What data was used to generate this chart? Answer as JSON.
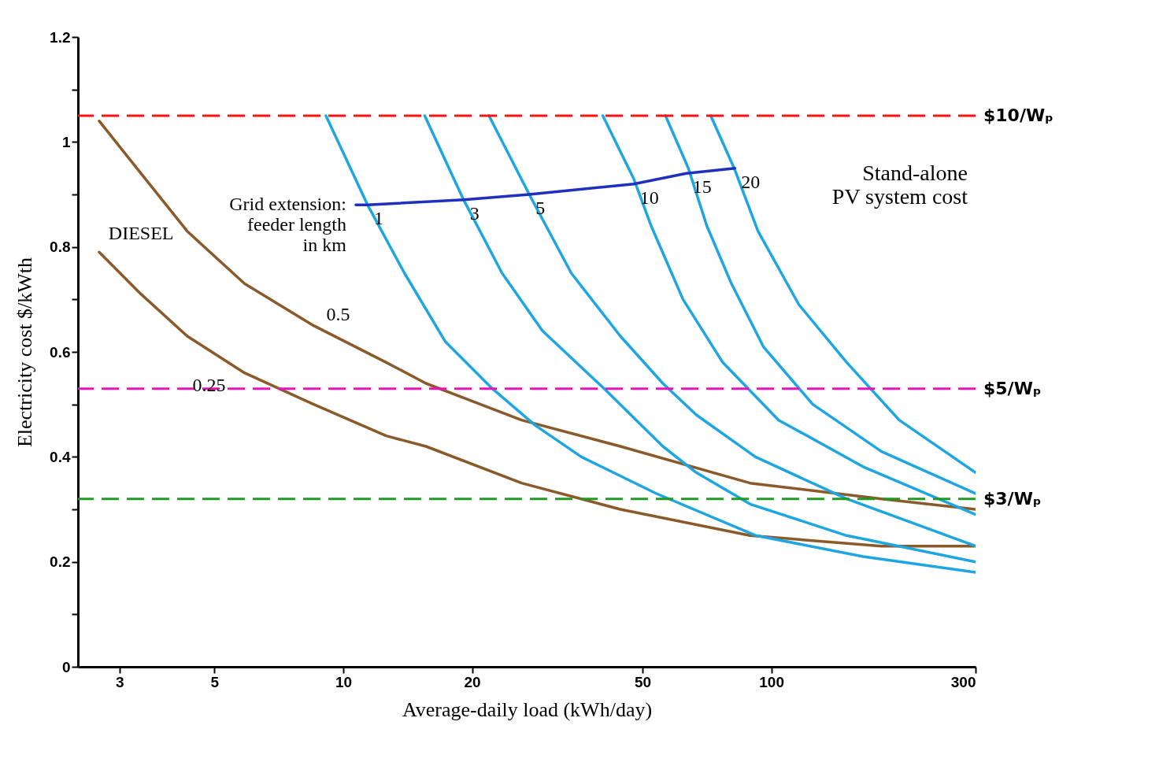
{
  "chart_data": {
    "type": "line",
    "xlabel": "Average-daily load (kWh/day)",
    "ylabel": "Electricity cost $/kWth",
    "log": "x",
    "xlim": [
      2.4,
      300
    ],
    "xticks": [
      3,
      5,
      10,
      20,
      50,
      100,
      300
    ],
    "ylim": [
      0,
      1.2
    ],
    "yticks": [
      0,
      {
        "value": 0.1,
        "label": null
      },
      0.2,
      {
        "value": 0.3,
        "label": null
      },
      0.4,
      {
        "value": 0.5,
        "label": null
      },
      0.6,
      {
        "value": 0.7,
        "label": null
      },
      0.8,
      {
        "value": 0.9,
        "label": null
      },
      1.0,
      {
        "value": 1.1,
        "label": null
      },
      1.2
    ],
    "series": [
      {
        "name": "DIESEL",
        "color": "#8b5a2b",
        "x": [
          2.69,
          3.37,
          4.32,
          5.88,
          8.53,
          12.6,
          15.6,
          26.1,
          44.4,
          89.2,
          181,
          300
        ],
        "values": [
          1.04,
          0.94,
          0.83,
          0.73,
          0.65,
          0.58,
          0.54,
          0.47,
          0.42,
          0.35,
          0.32,
          0.3
        ]
      },
      {
        "color": "#8b5a2b",
        "x": [
          2.69,
          3.37,
          4.32,
          5.88,
          8.53,
          12.6,
          15.6,
          26.1,
          44.4,
          89.2,
          181,
          300
        ],
        "values": [
          0.79,
          0.71,
          0.63,
          0.56,
          0.5,
          0.44,
          0.42,
          0.35,
          0.3,
          0.25,
          0.23,
          0.23
        ]
      },
      {
        "color": "#1ea6e0",
        "x": [
          9.11,
          11.4,
          13.9,
          17.3,
          22.3,
          28.1,
          36.0,
          53.9,
          92.1,
          164,
          300
        ],
        "values": [
          1.05,
          0.88,
          0.75,
          0.62,
          0.53,
          0.46,
          0.4,
          0.33,
          0.25,
          0.21,
          0.18
        ]
      },
      {
        "color": "#1ea6e0",
        "x": [
          15.5,
          19.1,
          23.5,
          29.2,
          40.7,
          55.8,
          66.8,
          89.2,
          150,
          300
        ],
        "values": [
          1.05,
          0.89,
          0.75,
          0.64,
          0.53,
          0.42,
          0.37,
          0.31,
          0.25,
          0.2
        ]
      },
      {
        "color": "#1ea6e0",
        "x": [
          21.9,
          27.2,
          34.1,
          44.4,
          55.8,
          66.8,
          91.8,
          150,
          300
        ],
        "values": [
          1.05,
          0.9,
          0.75,
          0.63,
          0.54,
          0.48,
          0.4,
          0.32,
          0.23
        ]
      },
      {
        "color": "#1ea6e0",
        "x": [
          40.4,
          47.7,
          52.4,
          62.2,
          77.0,
          104,
          165,
          300
        ],
        "values": [
          1.05,
          0.93,
          0.84,
          0.7,
          0.58,
          0.47,
          0.38,
          0.29
        ]
      },
      {
        "color": "#1ea6e0",
        "x": [
          56.6,
          64.0,
          70.7,
          80.7,
          95.8,
          125,
          181,
          300
        ],
        "values": [
          1.05,
          0.95,
          0.84,
          0.73,
          0.61,
          0.5,
          0.41,
          0.33
        ]
      },
      {
        "color": "#1ea6e0",
        "x": [
          72.2,
          81.9,
          93.1,
          116,
          150,
          199,
          300
        ],
        "values": [
          1.05,
          0.95,
          0.83,
          0.69,
          0.58,
          0.47,
          0.37
        ]
      },
      {
        "color": "#1f2fbf",
        "x": [
          10.7,
          11.4,
          19.1,
          27.2,
          47.7,
          63.3,
          82.2
        ],
        "values": [
          0.88,
          0.88,
          0.89,
          0.9,
          0.92,
          0.94,
          0.95
        ]
      }
    ],
    "ref_lines": [
      {
        "axis": "y",
        "value": 1.05,
        "label": "$10/Wₚ",
        "color": "#ff1010",
        "line_style": "dashed"
      },
      {
        "axis": "y",
        "value": 0.53,
        "label": "$5/Wₚ",
        "color": "#ee11bb",
        "line_style": "dashed"
      },
      {
        "axis": "y",
        "value": 0.32,
        "label": "$3/Wₚ",
        "color": "#229922",
        "line_style": "dashed"
      }
    ],
    "annotations": [
      {
        "text": "Grid extension:\nfeeder length\nin km",
        "x": 10.7,
        "y": 0.88
      },
      {
        "text": "0.25",
        "x": 5.88,
        "y": 0.56
      },
      {
        "text": "0.5",
        "x": 8.53,
        "y": 0.65
      },
      "Stand-alone\nPV system cost",
      {
        "text": "1",
        "x": 11.4,
        "y": 0.88
      },
      {
        "text": "3",
        "x": 19.1,
        "y": 0.89
      },
      {
        "text": "5",
        "x": 27.2,
        "y": 0.9
      },
      {
        "text": "10",
        "x": 47.7,
        "y": 0.92
      },
      {
        "text": "15",
        "x": 63.3,
        "y": 0.94
      },
      {
        "text": "20",
        "x": 82.2,
        "y": 0.95
      }
    ]
  }
}
